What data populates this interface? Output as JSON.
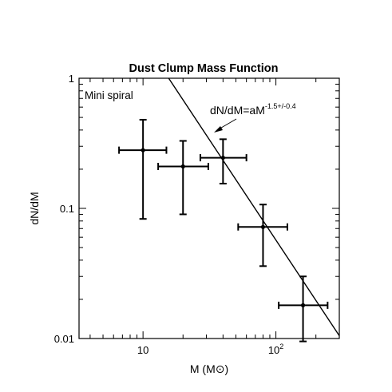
{
  "chart_data": {
    "type": "scatter",
    "title": "Dust Clump Mass Function",
    "xlabel": "M (M⊙)",
    "ylabel": "dN/dM",
    "xscale": "log",
    "yscale": "log",
    "xlim": [
      3.3,
      300
    ],
    "ylim": [
      0.01,
      1
    ],
    "grid": false,
    "x_ticks": [
      {
        "value": 10,
        "label": "10"
      },
      {
        "value": 100,
        "label": "10",
        "exponent": "2"
      }
    ],
    "y_ticks": [
      {
        "value": 0.01,
        "label": "0.01"
      },
      {
        "value": 0.1,
        "label": "0.1"
      },
      {
        "value": 1,
        "label": "1"
      }
    ],
    "panel_label": "Mini spiral",
    "series": [
      {
        "points": [
          {
            "x": 10,
            "y": 0.28,
            "x_err": [
              6.6,
              15
            ],
            "y_err": [
              0.083,
              0.48
            ]
          },
          {
            "x": 20,
            "y": 0.21,
            "x_err": [
              13,
              31
            ],
            "y_err": [
              0.09,
              0.33
            ]
          },
          {
            "x": 40,
            "y": 0.245,
            "x_err": [
              27,
              60
            ],
            "y_err": [
              0.155,
              0.34
            ]
          },
          {
            "x": 80,
            "y": 0.072,
            "x_err": [
              52,
              122
            ],
            "y_err": [
              0.036,
              0.107
            ]
          },
          {
            "x": 160,
            "y": 0.018,
            "x_err": [
              105,
              245
            ],
            "y_err": [
              0.0095,
              0.03
            ]
          }
        ]
      }
    ],
    "fit_line": {
      "formula": "dN/dM=aM",
      "exponent": "-1.5+/-0.4",
      "points": [
        [
          15.6,
          1.0
        ],
        [
          300,
          0.0105
        ]
      ]
    }
  }
}
